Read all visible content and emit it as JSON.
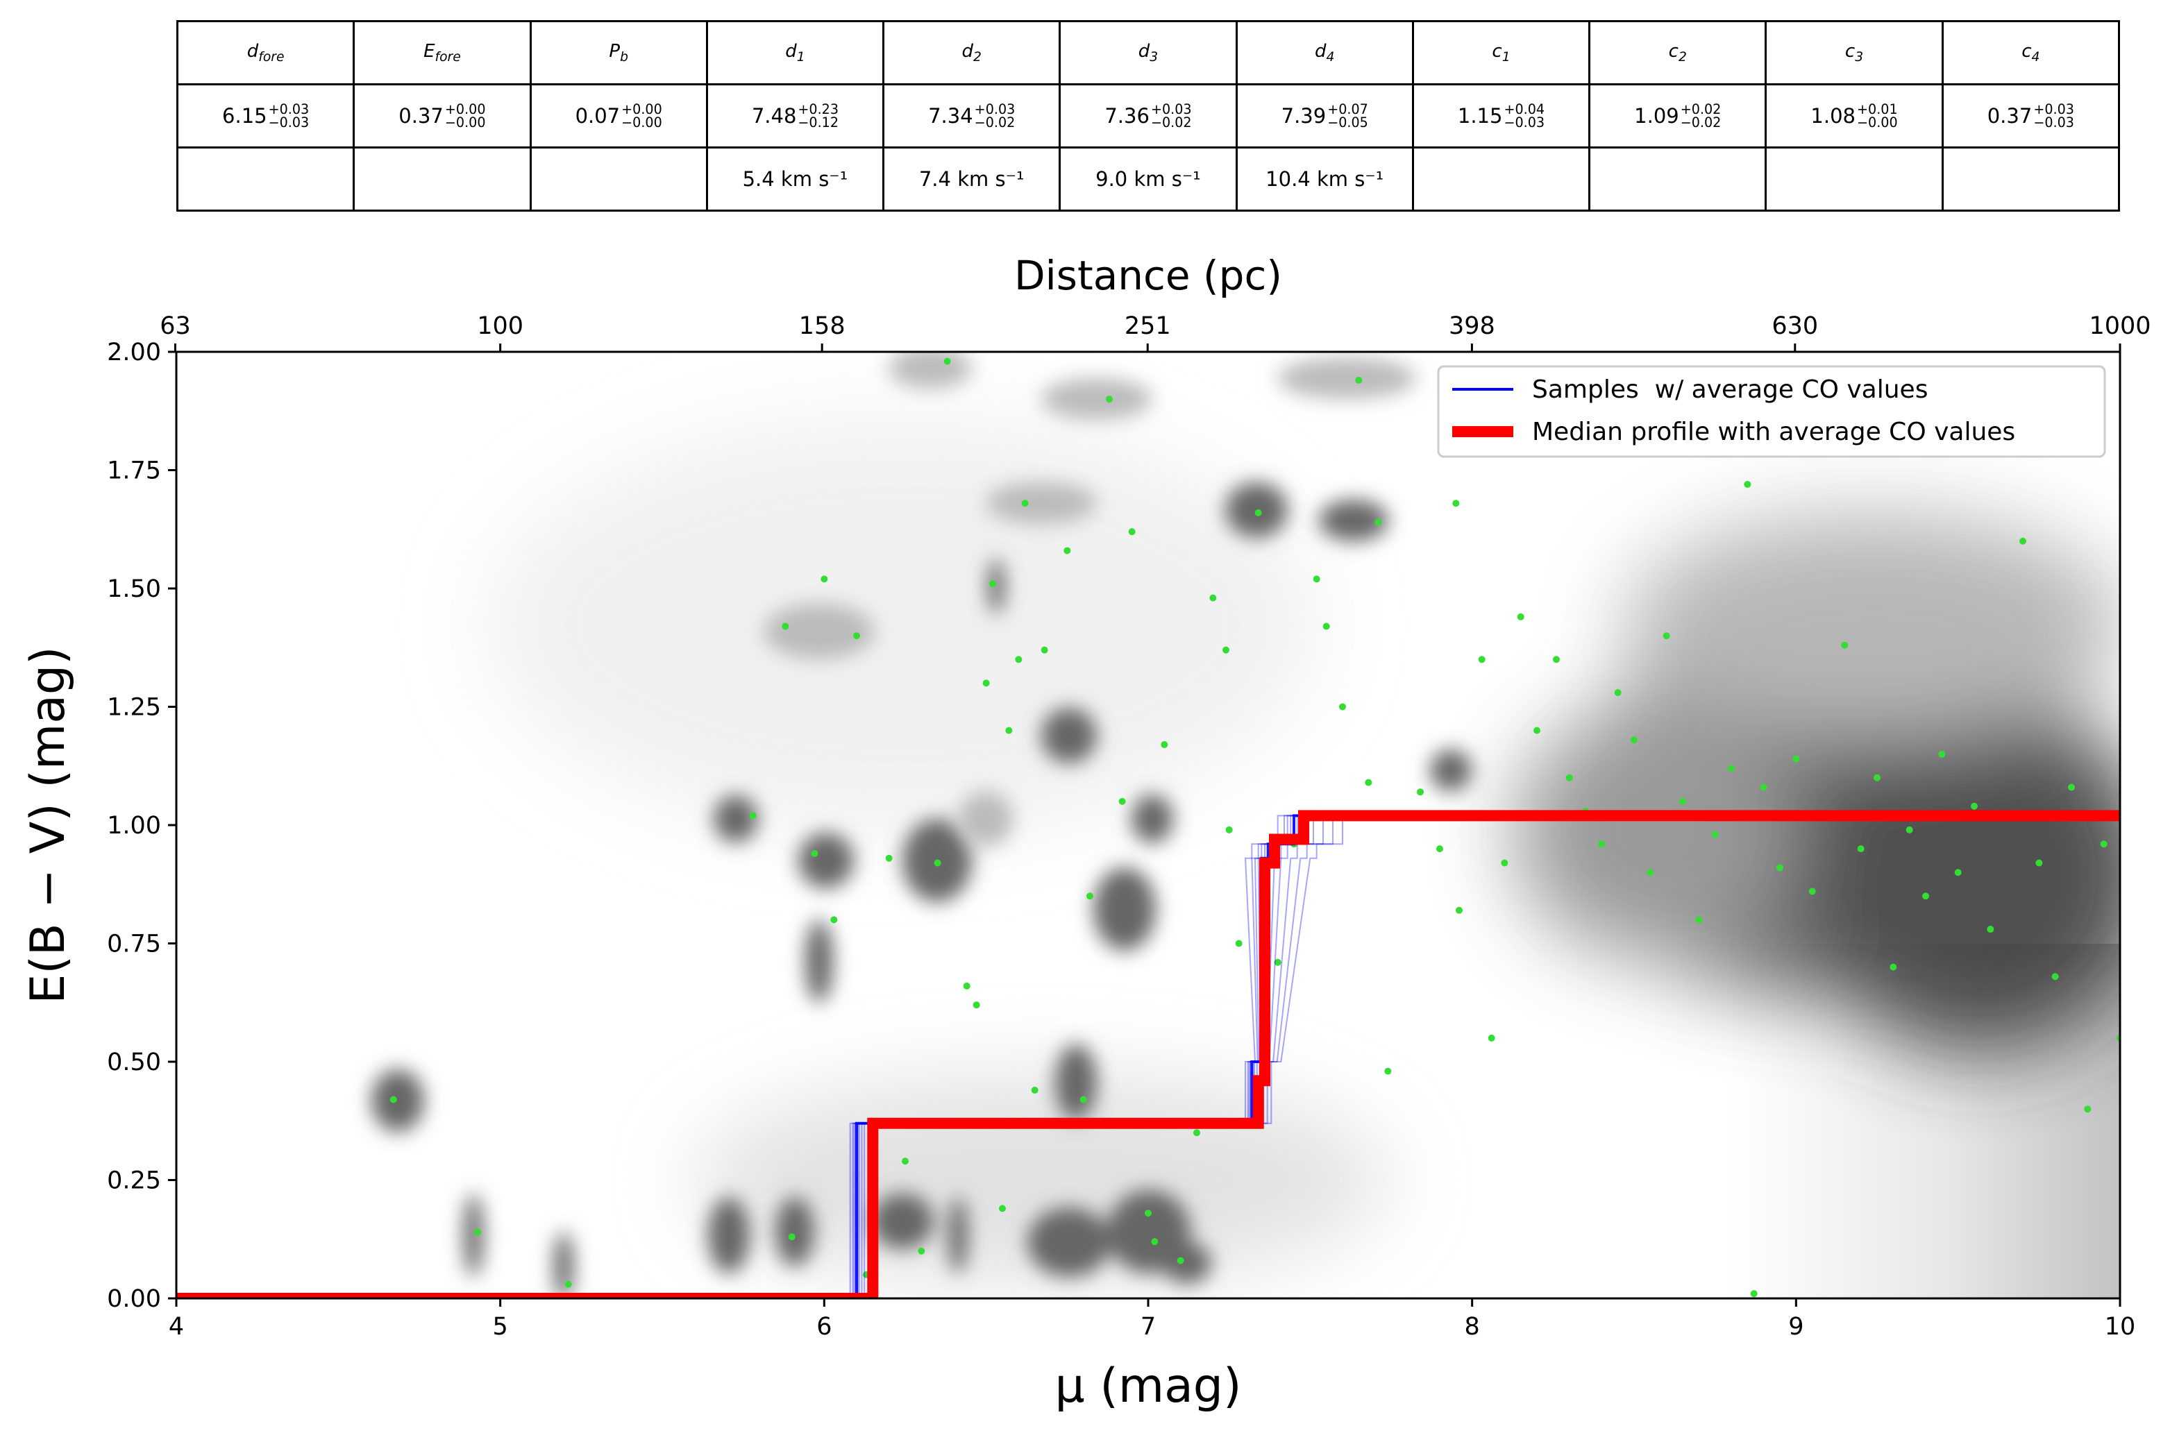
{
  "table": {
    "headers": [
      {
        "base": "d",
        "sub": "fore"
      },
      {
        "base": "E",
        "sub": "fore"
      },
      {
        "base": "P",
        "sub": "b"
      },
      {
        "base": "d",
        "sub": "1"
      },
      {
        "base": "d",
        "sub": "2"
      },
      {
        "base": "d",
        "sub": "3"
      },
      {
        "base": "d",
        "sub": "4"
      },
      {
        "base": "c",
        "sub": "1"
      },
      {
        "base": "c",
        "sub": "2"
      },
      {
        "base": "c",
        "sub": "3"
      },
      {
        "base": "c",
        "sub": "4"
      }
    ],
    "values": [
      {
        "v": "6.15",
        "plus": "+0.03",
        "minus": "−0.03"
      },
      {
        "v": "0.37",
        "plus": "+0.00",
        "minus": "−0.00"
      },
      {
        "v": "0.07",
        "plus": "+0.00",
        "minus": "−0.00"
      },
      {
        "v": "7.48",
        "plus": "+0.23",
        "minus": "−0.12"
      },
      {
        "v": "7.34",
        "plus": "+0.03",
        "minus": "−0.02"
      },
      {
        "v": "7.36",
        "plus": "+0.03",
        "minus": "−0.02"
      },
      {
        "v": "7.39",
        "plus": "+0.07",
        "minus": "−0.05"
      },
      {
        "v": "1.15",
        "plus": "+0.04",
        "minus": "−0.03"
      },
      {
        "v": "1.09",
        "plus": "+0.02",
        "minus": "−0.02"
      },
      {
        "v": "1.08",
        "plus": "+0.01",
        "minus": "−0.00"
      },
      {
        "v": "0.37",
        "plus": "+0.03",
        "minus": "−0.03"
      }
    ],
    "velocities": [
      "",
      "",
      "",
      "5.4 km s⁻¹",
      "7.4 km s⁻¹",
      "9.0 km s⁻¹",
      "10.4 km s⁻¹",
      "",
      "",
      "",
      ""
    ]
  },
  "chart_data": {
    "type": "line",
    "xlabel": "μ (mag)",
    "ylabel": "E(B − V) (mag)",
    "top_xlabel": "Distance (pc)",
    "xlim": [
      4,
      10
    ],
    "ylim": [
      0,
      2
    ],
    "xticks": [
      "4",
      "5",
      "6",
      "7",
      "8",
      "9",
      "10"
    ],
    "yticks": [
      "0.00",
      "0.25",
      "0.50",
      "0.75",
      "1.00",
      "1.25",
      "1.50",
      "1.75",
      "2.00"
    ],
    "top_xticks": [
      "63",
      "100",
      "158",
      "251",
      "398",
      "630",
      "1000"
    ],
    "legend": {
      "placement": "top-right",
      "entries": [
        {
          "label": "Samples  w/ average CO values",
          "color": "#0000ff"
        },
        {
          "label": "Median profile with average CO values",
          "color": "#ff0000"
        }
      ]
    },
    "series": [
      {
        "name": "Median profile with average CO values",
        "color": "#ff0000",
        "x": [
          4.0,
          6.15,
          6.15,
          7.34,
          7.34,
          7.36,
          7.36,
          7.39,
          7.39,
          7.48,
          7.48,
          10.0
        ],
        "y": [
          0.0,
          0.0,
          0.37,
          0.37,
          0.46,
          0.46,
          0.92,
          0.92,
          0.97,
          0.97,
          1.02,
          1.02
        ]
      },
      {
        "name": "Samples  w/ average CO values",
        "color": "#0000ff",
        "x": [
          4.0,
          6.1,
          6.1,
          7.32,
          7.32,
          7.35,
          7.35,
          7.37,
          7.37,
          7.45,
          7.45,
          10.0
        ],
        "y": [
          0.0,
          0.0,
          0.37,
          0.37,
          0.5,
          0.5,
          0.93,
          0.93,
          0.96,
          0.96,
          1.02,
          1.02
        ]
      }
    ],
    "background_points": {
      "color": "#33dd33",
      "x": [
        4.67,
        4.93,
        5.21,
        5.78,
        5.9,
        5.88,
        5.97,
        6.0,
        6.03,
        6.1,
        6.13,
        6.2,
        6.25,
        6.3,
        6.35,
        6.38,
        6.44,
        6.47,
        6.5,
        6.52,
        6.55,
        6.57,
        6.6,
        6.62,
        6.65,
        6.68,
        6.75,
        6.8,
        6.82,
        6.88,
        6.92,
        6.95,
        7.0,
        7.02,
        7.05,
        7.1,
        7.15,
        7.2,
        7.24,
        7.25,
        7.28,
        7.34,
        7.4,
        7.45,
        7.52,
        7.55,
        7.6,
        7.65,
        7.68,
        7.71,
        7.74,
        7.84,
        7.9,
        7.95,
        7.96,
        8.03,
        8.06,
        8.1,
        8.15,
        8.2,
        8.26,
        8.3,
        8.35,
        8.4,
        8.45,
        8.5,
        8.55,
        8.6,
        8.65,
        8.7,
        8.75,
        8.8,
        8.85,
        8.87,
        8.9,
        8.95,
        9.0,
        9.05,
        9.1,
        9.15,
        9.2,
        9.25,
        9.3,
        9.35,
        9.4,
        9.45,
        9.5,
        9.55,
        9.6,
        9.65,
        9.7,
        9.75,
        9.8,
        9.85,
        9.9,
        9.95,
        10.0
      ],
      "y": [
        0.42,
        0.14,
        0.03,
        1.02,
        0.13,
        1.42,
        0.94,
        1.52,
        0.8,
        1.4,
        0.05,
        0.93,
        0.29,
        0.1,
        0.92,
        1.98,
        0.66,
        0.62,
        1.3,
        1.51,
        0.19,
        1.2,
        1.35,
        1.68,
        0.44,
        1.37,
        1.58,
        0.42,
        0.85,
        1.9,
        1.05,
        1.62,
        0.18,
        0.12,
        1.17,
        0.08,
        0.35,
        1.48,
        1.37,
        0.99,
        0.75,
        1.66,
        0.71,
        0.96,
        1.52,
        1.42,
        1.25,
        1.94,
        1.09,
        1.64,
        0.48,
        1.07,
        0.95,
        1.68,
        0.82,
        1.35,
        0.55,
        0.92,
        1.44,
        1.2,
        1.35,
        1.1,
        1.03,
        0.96,
        1.28,
        1.18,
        0.9,
        1.4,
        1.05,
        0.8,
        0.98,
        1.12,
        1.72,
        0.01,
        1.08,
        0.91,
        1.14,
        0.86,
        1.02,
        1.38,
        0.95,
        1.1,
        0.7,
        0.99,
        0.85,
        1.15,
        0.9,
        1.04,
        0.78,
        1.02,
        1.6,
        0.92,
        0.68,
        1.08,
        0.4,
        0.96,
        0.55
      ]
    }
  }
}
